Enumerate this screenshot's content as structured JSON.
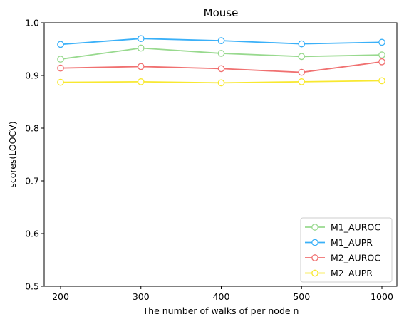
{
  "chart_data": {
    "type": "line",
    "title": "Mouse",
    "xlabel": "The number of walks of per node n",
    "ylabel": "scores(LOOCV)",
    "categories": [
      "200",
      "300",
      "400",
      "500",
      "1000"
    ],
    "ylim": [
      0.5,
      1.0
    ],
    "yticks": [
      "0.5",
      "0.6",
      "0.7",
      "0.8",
      "0.9",
      "1.0"
    ],
    "grid": false,
    "legend_position": "lower-right",
    "series": [
      {
        "name": "M1_AUROC",
        "color": "#98d98e",
        "values": [
          0.931,
          0.952,
          0.942,
          0.936,
          0.939
        ]
      },
      {
        "name": "M1_AUPR",
        "color": "#3ab0f8",
        "values": [
          0.959,
          0.97,
          0.966,
          0.96,
          0.963
        ]
      },
      {
        "name": "M2_AUROC",
        "color": "#f07070",
        "values": [
          0.914,
          0.917,
          0.913,
          0.906,
          0.926
        ]
      },
      {
        "name": "M2_AUPR",
        "color": "#f8e830",
        "values": [
          0.887,
          0.888,
          0.886,
          0.888,
          0.89
        ]
      }
    ]
  }
}
